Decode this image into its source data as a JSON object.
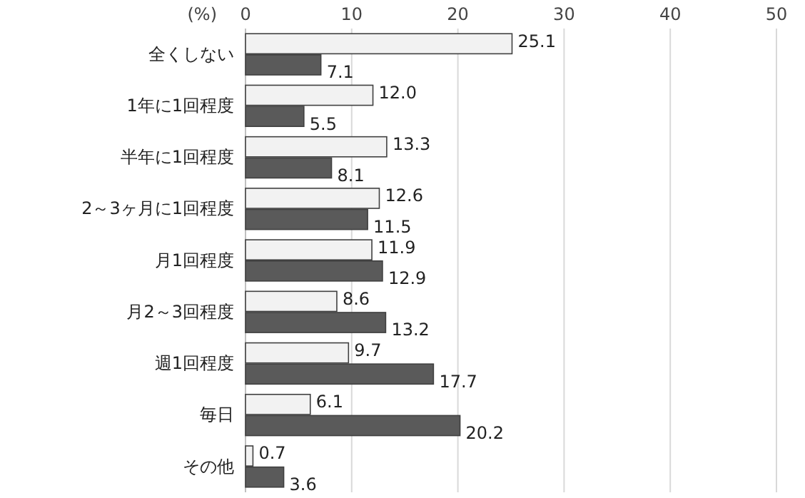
{
  "chart_data": {
    "type": "bar",
    "orientation": "horizontal",
    "xlabel": "(%)",
    "categories": [
      "全くしない",
      "1年に1回程度",
      "半年に1回程度",
      "2～3ヶ月に1回程度",
      "月1回程度",
      "月2～3回程度",
      "週1回程度",
      "毎日",
      "その他"
    ],
    "series": [
      {
        "color": "#f2f2f2",
        "values": [
          25.1,
          12.0,
          13.3,
          12.6,
          11.9,
          8.6,
          9.7,
          6.1,
          0.7
        ],
        "value_labels": [
          "25.1",
          "12.0",
          "13.3",
          "12.6",
          "11.9",
          "8.6",
          "9.7",
          "6.1",
          "0.7"
        ]
      },
      {
        "color": "#5a5a5a",
        "values": [
          7.1,
          5.5,
          8.1,
          11.5,
          12.9,
          13.2,
          17.7,
          20.2,
          3.6
        ],
        "value_labels": [
          "7.1",
          "5.5",
          "8.1",
          "11.5",
          "12.9",
          "13.2",
          "17.7",
          "20.2",
          "3.6"
        ]
      }
    ],
    "xlim": [
      0,
      50
    ],
    "xticks": [
      0,
      10,
      20,
      30,
      40,
      50
    ],
    "grid": "x"
  }
}
